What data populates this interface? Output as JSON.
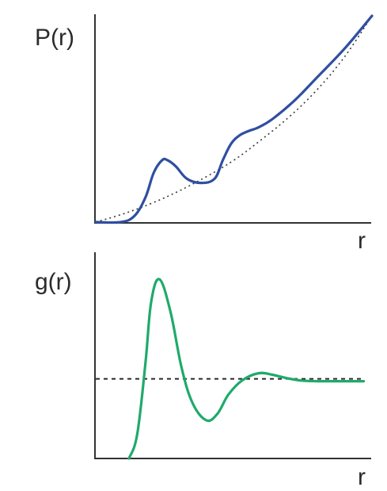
{
  "chart_data": [
    {
      "type": "line",
      "ylabel": "P(r)",
      "xlabel": "r",
      "series": [
        {
          "color": "#2f4fa0",
          "style": "solid",
          "x": [
            0.0,
            0.09,
            0.14,
            0.18,
            0.21,
            0.24,
            0.26,
            0.29,
            0.33,
            0.38,
            0.43,
            0.46,
            0.49,
            0.52,
            0.55,
            0.59,
            0.64,
            0.72,
            0.8,
            0.9,
            1.0
          ],
          "y": [
            0.0,
            0.0,
            0.03,
            0.12,
            0.24,
            0.3,
            0.3,
            0.27,
            0.21,
            0.19,
            0.21,
            0.3,
            0.38,
            0.42,
            0.44,
            0.46,
            0.5,
            0.59,
            0.7,
            0.84,
            1.0
          ]
        },
        {
          "color": "#3a3a3a",
          "style": "dotted",
          "x": [
            0.0,
            0.1,
            0.2,
            0.3,
            0.4,
            0.5,
            0.6,
            0.7,
            0.8,
            0.9,
            1.0
          ],
          "y": [
            0.0,
            0.04,
            0.09,
            0.15,
            0.22,
            0.3,
            0.4,
            0.51,
            0.64,
            0.8,
            1.0
          ]
        }
      ]
    },
    {
      "type": "line",
      "ylabel": "g(r)",
      "xlabel": "r",
      "series": [
        {
          "color": "#1faa6a",
          "style": "solid",
          "x": [
            0.12,
            0.15,
            0.18,
            0.2,
            0.23,
            0.27,
            0.31,
            0.35,
            0.4,
            0.44,
            0.48,
            0.53,
            0.59,
            0.64,
            0.69,
            0.74,
            0.8,
            0.88,
            0.97
          ],
          "y": [
            0.0,
            0.3,
            1.2,
            1.95,
            2.25,
            1.85,
            1.15,
            0.7,
            0.48,
            0.56,
            0.8,
            0.98,
            1.07,
            1.05,
            1.01,
            0.98,
            0.97,
            0.97,
            0.97
          ]
        },
        {
          "color": "#2a2a2a",
          "style": "dashed",
          "x": [
            0.0,
            0.97
          ],
          "y": [
            1.0,
            1.0
          ]
        }
      ]
    }
  ]
}
